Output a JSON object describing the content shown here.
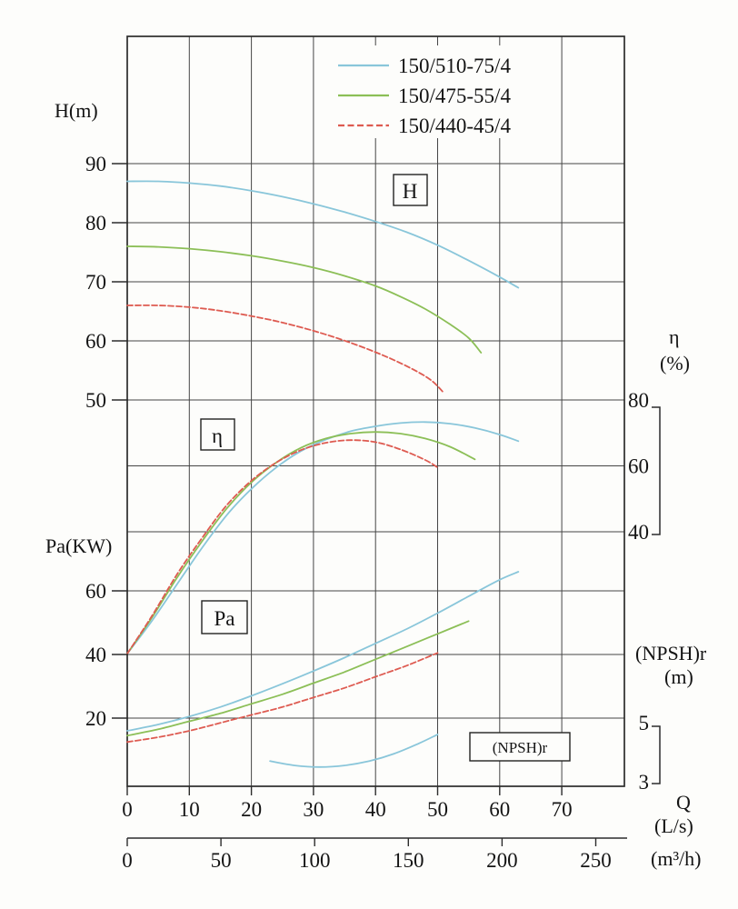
{
  "chart_data": {
    "type": "line",
    "title": "",
    "description": "Pump performance curves: head H, efficiency eta, shaft power Pa and NPSHr versus flow rate Q for three pump models",
    "grid": true,
    "legend_position": "top-center",
    "x_axis": {
      "title_symbol": "Q",
      "title_unit": "(L/s)",
      "ticks": [
        0,
        10,
        20,
        30,
        40,
        50,
        60,
        70
      ],
      "range": [
        0,
        80
      ]
    },
    "x_axis_secondary": {
      "title_unit": "(m³/h)",
      "ticks": [
        0,
        50,
        100,
        150,
        200,
        250
      ],
      "range": [
        0,
        265
      ]
    },
    "y_axes": {
      "H": {
        "title": "H(m)",
        "inline_label": "H",
        "side": "left",
        "ticks": [
          90,
          80,
          70,
          60,
          50
        ],
        "range": [
          50,
          111
        ]
      },
      "Pa": {
        "title": "Pa(KW)",
        "inline_label": "Pa",
        "side": "left",
        "ticks": [
          60,
          40,
          20
        ],
        "range": [
          0,
          100
        ]
      },
      "eta": {
        "title_symbol": "η",
        "title_unit": "(%)",
        "inline_label": "η",
        "side": "right",
        "ticks": [
          80,
          60,
          40
        ],
        "range": [
          40,
          80
        ]
      },
      "NPSHr": {
        "title": "(NPSH)r",
        "title_unit": "(m)",
        "inline_label": "(NPSH)r",
        "side": "right",
        "ticks": [
          5,
          3
        ],
        "range": [
          3,
          5
        ]
      }
    },
    "series": [
      {
        "name": "150/510-75/4",
        "color": "#89c6da",
        "line_style": "solid",
        "H_m": [
          [
            0,
            87
          ],
          [
            5,
            87
          ],
          [
            10,
            86.7
          ],
          [
            15,
            86.2
          ],
          [
            20,
            85.4
          ],
          [
            25,
            84.4
          ],
          [
            30,
            83.2
          ],
          [
            35,
            81.8
          ],
          [
            40,
            80.2
          ],
          [
            45,
            78.4
          ],
          [
            50,
            76.2
          ],
          [
            55,
            73.6
          ],
          [
            60,
            70.8
          ],
          [
            63,
            69
          ]
        ],
        "eta_pct": [
          [
            0,
            3
          ],
          [
            4,
            13
          ],
          [
            8,
            24
          ],
          [
            12,
            35
          ],
          [
            16,
            45
          ],
          [
            20,
            53
          ],
          [
            24,
            59.5
          ],
          [
            28,
            64.5
          ],
          [
            32,
            68
          ],
          [
            36,
            70.5
          ],
          [
            40,
            72
          ],
          [
            44,
            73
          ],
          [
            48,
            73.3
          ],
          [
            52,
            72.8
          ],
          [
            56,
            71.5
          ],
          [
            60,
            69.5
          ],
          [
            63,
            67.5
          ]
        ],
        "Pa_kW": [
          [
            0,
            16
          ],
          [
            5,
            18
          ],
          [
            10,
            20.5
          ],
          [
            15,
            23.5
          ],
          [
            20,
            27
          ],
          [
            25,
            30.8
          ],
          [
            30,
            34.8
          ],
          [
            35,
            39
          ],
          [
            40,
            43.5
          ],
          [
            45,
            48
          ],
          [
            50,
            53
          ],
          [
            55,
            58.3
          ],
          [
            60,
            63.5
          ],
          [
            63,
            66
          ]
        ],
        "NPSHr_m": [
          [
            23,
            3.7
          ],
          [
            27,
            3.55
          ],
          [
            31,
            3.5
          ],
          [
            35,
            3.55
          ],
          [
            39,
            3.7
          ],
          [
            43,
            3.95
          ],
          [
            47,
            4.3
          ],
          [
            50,
            4.6
          ]
        ]
      },
      {
        "name": "150/475-55/4",
        "color": "#8cbf57",
        "line_style": "solid",
        "H_m": [
          [
            0,
            76
          ],
          [
            5,
            75.9
          ],
          [
            10,
            75.6
          ],
          [
            15,
            75.1
          ],
          [
            20,
            74.4
          ],
          [
            25,
            73.5
          ],
          [
            30,
            72.4
          ],
          [
            35,
            71
          ],
          [
            40,
            69.3
          ],
          [
            44,
            67.5
          ],
          [
            48,
            65.4
          ],
          [
            52,
            62.8
          ],
          [
            55,
            60.5
          ],
          [
            57,
            58
          ]
        ],
        "eta_pct": [
          [
            0,
            3
          ],
          [
            4,
            14
          ],
          [
            8,
            26
          ],
          [
            12,
            37
          ],
          [
            16,
            47
          ],
          [
            20,
            55
          ],
          [
            24,
            61
          ],
          [
            28,
            65.5
          ],
          [
            32,
            68.3
          ],
          [
            36,
            69.8
          ],
          [
            40,
            70.3
          ],
          [
            44,
            69.8
          ],
          [
            48,
            68.3
          ],
          [
            52,
            65.8
          ],
          [
            56,
            62
          ]
        ],
        "Pa_kW": [
          [
            0,
            14.5
          ],
          [
            5,
            16.5
          ],
          [
            10,
            19
          ],
          [
            15,
            21.5
          ],
          [
            20,
            24.5
          ],
          [
            25,
            27.5
          ],
          [
            30,
            31
          ],
          [
            35,
            34.5
          ],
          [
            40,
            38.5
          ],
          [
            45,
            42.5
          ],
          [
            50,
            46.5
          ],
          [
            55,
            50.5
          ]
        ]
      },
      {
        "name": "150/440-45/4",
        "color": "#de5b51",
        "line_style": "dashed",
        "H_m": [
          [
            0,
            66
          ],
          [
            5,
            66
          ],
          [
            10,
            65.7
          ],
          [
            15,
            65.1
          ],
          [
            20,
            64.2
          ],
          [
            25,
            63.1
          ],
          [
            30,
            61.7
          ],
          [
            34,
            60.4
          ],
          [
            38,
            58.9
          ],
          [
            42,
            57.2
          ],
          [
            46,
            55.2
          ],
          [
            49,
            53.3
          ],
          [
            51,
            51.2
          ]
        ],
        "eta_pct": [
          [
            0,
            3
          ],
          [
            4,
            14.5
          ],
          [
            8,
            27
          ],
          [
            12,
            38
          ],
          [
            16,
            48
          ],
          [
            20,
            55.5
          ],
          [
            24,
            61
          ],
          [
            28,
            64.8
          ],
          [
            32,
            67
          ],
          [
            36,
            67.8
          ],
          [
            40,
            67.2
          ],
          [
            44,
            65
          ],
          [
            48,
            61.8
          ],
          [
            50,
            59.5
          ]
        ],
        "Pa_kW": [
          [
            0,
            12.5
          ],
          [
            5,
            14
          ],
          [
            10,
            16
          ],
          [
            15,
            18.5
          ],
          [
            20,
            21
          ],
          [
            25,
            23.5
          ],
          [
            30,
            26.5
          ],
          [
            35,
            29.5
          ],
          [
            40,
            33
          ],
          [
            45,
            36.5
          ],
          [
            50,
            40.5
          ]
        ]
      }
    ]
  }
}
